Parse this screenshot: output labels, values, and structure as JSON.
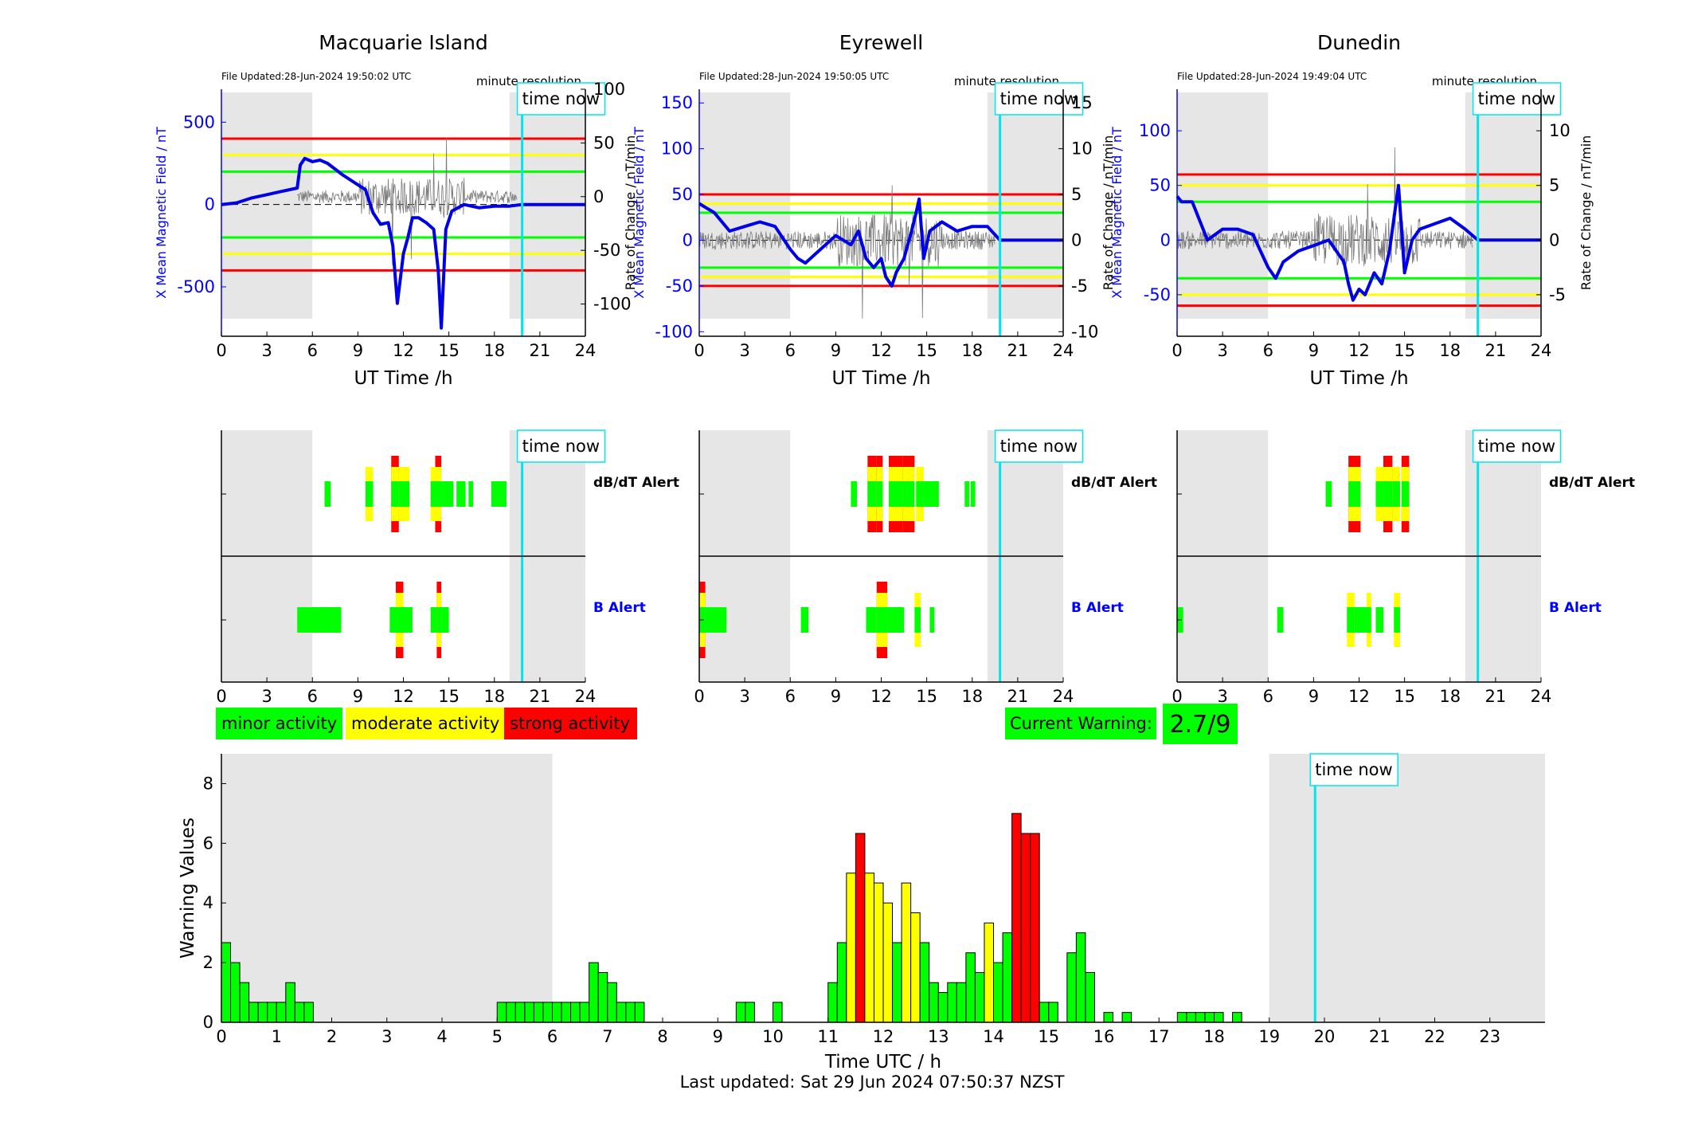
{
  "colors": {
    "shade": "#e6e6e6",
    "field_line": "#0000e6",
    "rate_line": "#7a7a7a",
    "red": "#ff0000",
    "yellow": "#ffff00",
    "green": "#00ff00",
    "time_now": "#00e5ee",
    "axis_blue": "#0000ff"
  },
  "common": {
    "time_now_label": "time now",
    "minute_resolution": "minute resolution",
    "x_label_top": "UT Time /h",
    "x_ticks_top": [
      "0",
      "3",
      "6",
      "9",
      "12",
      "15",
      "18",
      "21",
      "24"
    ],
    "y_left_label": "X Mean Magnetic Field / nT",
    "y_right_label": "Rate of Change / nT/min",
    "dbdt_alert": "dB/dT Alert",
    "b_alert": "B Alert"
  },
  "chart_data": [
    {
      "type": "line",
      "title": "Macquarie Island",
      "file_updated": "File Updated:28-Jun-2024 19:50:02 UTC",
      "xlim": [
        0,
        24
      ],
      "time_now": 19.83,
      "night_shade": [
        [
          0,
          6
        ],
        [
          19,
          24
        ]
      ],
      "ylim_left": [
        -800,
        700
      ],
      "yticks_left": [
        "500",
        "0",
        "-500"
      ],
      "ytick_values_left": [
        500,
        0,
        -500
      ],
      "ylim_right": [
        -130,
        100
      ],
      "yticks_right": [
        "100",
        "50",
        "0",
        "-50",
        "-100"
      ],
      "ytick_values_right": [
        100,
        50,
        0,
        -50,
        -100
      ],
      "thresholds": {
        "red": 400,
        "yellow": 300,
        "green": 200
      },
      "field_series": [
        [
          0,
          0
        ],
        [
          1,
          10
        ],
        [
          2,
          40
        ],
        [
          3,
          60
        ],
        [
          4,
          80
        ],
        [
          5,
          100
        ],
        [
          5.2,
          240
        ],
        [
          5.5,
          280
        ],
        [
          6,
          260
        ],
        [
          6.5,
          270
        ],
        [
          7,
          250
        ],
        [
          8,
          180
        ],
        [
          9,
          120
        ],
        [
          9.5,
          90
        ],
        [
          10,
          -50
        ],
        [
          10.5,
          -120
        ],
        [
          11,
          -110
        ],
        [
          11.3,
          -250
        ],
        [
          11.6,
          -600
        ],
        [
          12,
          -300
        ],
        [
          12.3,
          -200
        ],
        [
          12.6,
          -80
        ],
        [
          13,
          -80
        ],
        [
          13.5,
          -110
        ],
        [
          14,
          -150
        ],
        [
          14.3,
          -400
        ],
        [
          14.5,
          -750
        ],
        [
          14.8,
          -150
        ],
        [
          15.2,
          -40
        ],
        [
          16,
          0
        ],
        [
          17,
          -20
        ],
        [
          18,
          -10
        ],
        [
          19,
          -10
        ],
        [
          19.83,
          0
        ],
        [
          24,
          0
        ]
      ],
      "rate_noise_windows": [
        [
          5,
          19.5
        ]
      ],
      "dbdt_blocks": [
        [
          6.8,
          7.2,
          "g"
        ],
        [
          9.5,
          10,
          "y"
        ],
        [
          11.2,
          11.7,
          "r"
        ],
        [
          11.7,
          12.4,
          "y"
        ],
        [
          13.8,
          14.1,
          "y"
        ],
        [
          14.1,
          14.5,
          "r"
        ],
        [
          14.5,
          15.3,
          "g"
        ],
        [
          15.5,
          16.1,
          "g"
        ],
        [
          16.3,
          16.6,
          "g"
        ],
        [
          17.8,
          18.8,
          "g"
        ]
      ],
      "b_blocks": [
        [
          5,
          7.9,
          "g"
        ],
        [
          11.1,
          11.5,
          "g"
        ],
        [
          11.5,
          12,
          "r"
        ],
        [
          12,
          12.6,
          "g"
        ],
        [
          13.8,
          14.2,
          "g"
        ],
        [
          14.2,
          14.5,
          "r"
        ],
        [
          14.5,
          15,
          "g"
        ]
      ]
    },
    {
      "type": "line",
      "title": "Eyrewell",
      "file_updated": "File Updated:28-Jun-2024 19:50:05 UTC",
      "xlim": [
        0,
        24
      ],
      "time_now": 19.83,
      "night_shade": [
        [
          0,
          6
        ],
        [
          19,
          24
        ]
      ],
      "ylim_left": [
        -105,
        165
      ],
      "yticks_left": [
        "150",
        "100",
        "50",
        "0",
        "-50",
        "-100"
      ],
      "ytick_values_left": [
        150,
        100,
        50,
        0,
        -50,
        -100
      ],
      "ylim_right": [
        -10.5,
        16.5
      ],
      "yticks_right": [
        "15",
        "10",
        "5",
        "0",
        "-5",
        "-10"
      ],
      "ytick_values_right": [
        15,
        10,
        5,
        0,
        -5,
        -10
      ],
      "thresholds": {
        "red": 50,
        "yellow": 40,
        "green": 30
      },
      "field_series": [
        [
          0,
          40
        ],
        [
          0.5,
          35
        ],
        [
          1,
          30
        ],
        [
          2,
          10
        ],
        [
          3,
          15
        ],
        [
          4,
          20
        ],
        [
          5,
          15
        ],
        [
          6,
          -10
        ],
        [
          6.5,
          -20
        ],
        [
          7,
          -25
        ],
        [
          8,
          -10
        ],
        [
          9,
          5
        ],
        [
          10,
          -5
        ],
        [
          10.5,
          10
        ],
        [
          11,
          -20
        ],
        [
          11.5,
          -30
        ],
        [
          12,
          -20
        ],
        [
          12.3,
          -40
        ],
        [
          12.7,
          -50
        ],
        [
          13,
          -35
        ],
        [
          13.5,
          -20
        ],
        [
          14,
          10
        ],
        [
          14.3,
          30
        ],
        [
          14.5,
          45
        ],
        [
          14.8,
          -20
        ],
        [
          15.2,
          10
        ],
        [
          16,
          20
        ],
        [
          17,
          10
        ],
        [
          18,
          15
        ],
        [
          19,
          15
        ],
        [
          19.83,
          0
        ],
        [
          24,
          0
        ]
      ],
      "rate_noise_windows": [
        [
          0,
          19.5
        ]
      ],
      "dbdt_blocks": [
        [
          10,
          10.4,
          "g"
        ],
        [
          11.1,
          11.7,
          "r"
        ],
        [
          11.7,
          12.1,
          "r"
        ],
        [
          12.5,
          13.4,
          "r"
        ],
        [
          13.4,
          14.2,
          "r"
        ],
        [
          14.3,
          14.8,
          "y"
        ],
        [
          14.8,
          15.8,
          "g"
        ],
        [
          17.5,
          17.8,
          "g"
        ],
        [
          17.9,
          18.2,
          "g"
        ]
      ],
      "b_blocks": [
        [
          0,
          0.4,
          "r"
        ],
        [
          0.4,
          1.8,
          "g"
        ],
        [
          6.7,
          7.2,
          "g"
        ],
        [
          11,
          11.7,
          "g"
        ],
        [
          11.7,
          12.4,
          "r"
        ],
        [
          12.4,
          13.5,
          "g"
        ],
        [
          14.2,
          14.6,
          "y"
        ],
        [
          15.2,
          15.5,
          "g"
        ]
      ]
    },
    {
      "type": "line",
      "title": "Dunedin",
      "file_updated": "File Updated:28-Jun-2024 19:49:04 UTC",
      "xlim": [
        0,
        24
      ],
      "time_now": 19.83,
      "night_shade": [
        [
          0,
          6
        ],
        [
          19,
          24
        ]
      ],
      "ylim_left": [
        -88,
        138
      ],
      "yticks_left": [
        "100",
        "50",
        "0",
        "-50"
      ],
      "ytick_values_left": [
        100,
        50,
        0,
        -50
      ],
      "ylim_right": [
        -8.8,
        13.8
      ],
      "yticks_right": [
        "10",
        "5",
        "0",
        "-5"
      ],
      "ytick_values_right": [
        10,
        5,
        0,
        -5
      ],
      "thresholds": {
        "red": 60,
        "yellow": 50,
        "green": 35
      },
      "field_series": [
        [
          0,
          40
        ],
        [
          0.3,
          35
        ],
        [
          1,
          35
        ],
        [
          2,
          0
        ],
        [
          3,
          10
        ],
        [
          4,
          10
        ],
        [
          5,
          5
        ],
        [
          5.5,
          -10
        ],
        [
          6,
          -25
        ],
        [
          6.5,
          -35
        ],
        [
          7,
          -20
        ],
        [
          8,
          -10
        ],
        [
          9,
          -5
        ],
        [
          10,
          0
        ],
        [
          10.5,
          -10
        ],
        [
          11,
          -20
        ],
        [
          11.3,
          -40
        ],
        [
          11.6,
          -55
        ],
        [
          12,
          -45
        ],
        [
          12.4,
          -50
        ],
        [
          13,
          -30
        ],
        [
          13.5,
          -40
        ],
        [
          14,
          -10
        ],
        [
          14.3,
          20
        ],
        [
          14.6,
          50
        ],
        [
          15,
          -30
        ],
        [
          15.5,
          0
        ],
        [
          16,
          10
        ],
        [
          17,
          15
        ],
        [
          18,
          20
        ],
        [
          19,
          10
        ],
        [
          19.83,
          0
        ],
        [
          24,
          0
        ]
      ],
      "rate_noise_windows": [
        [
          0,
          19.5
        ]
      ],
      "dbdt_blocks": [
        [
          9.8,
          10.2,
          "g"
        ],
        [
          11.3,
          12.1,
          "r"
        ],
        [
          13.1,
          13.6,
          "y"
        ],
        [
          13.6,
          14.2,
          "r"
        ],
        [
          14.2,
          14.7,
          "y"
        ],
        [
          14.8,
          15.3,
          "r"
        ]
      ],
      "b_blocks": [
        [
          0,
          0.4,
          "g"
        ],
        [
          6.6,
          7,
          "g"
        ],
        [
          11.2,
          11.7,
          "y"
        ],
        [
          11.7,
          12.5,
          "g"
        ],
        [
          12.5,
          12.8,
          "y"
        ],
        [
          13.1,
          13.6,
          "g"
        ],
        [
          14.3,
          14.7,
          "y"
        ]
      ]
    },
    {
      "type": "bar",
      "xlabel": "Time UTC / h",
      "ylabel": "Warning Values",
      "xlim": [
        0,
        24
      ],
      "ylim": [
        0,
        9
      ],
      "x_ticks": [
        "0",
        "1",
        "2",
        "3",
        "4",
        "5",
        "6",
        "7",
        "8",
        "9",
        "10",
        "11",
        "12",
        "13",
        "14",
        "15",
        "16",
        "17",
        "18",
        "19",
        "20",
        "21",
        "22",
        "23"
      ],
      "y_ticks": [
        "0",
        "2",
        "4",
        "6",
        "8"
      ],
      "time_now": 19.83,
      "night_shade": [
        [
          0,
          6
        ],
        [
          19,
          24
        ]
      ],
      "bin_width": 0.1667,
      "bars": [
        [
          0.0833,
          2.67,
          "g"
        ],
        [
          0.25,
          2,
          "g"
        ],
        [
          0.4167,
          1.33,
          "g"
        ],
        [
          0.5833,
          0.67,
          "g"
        ],
        [
          0.75,
          0.67,
          "g"
        ],
        [
          0.9167,
          0.67,
          "g"
        ],
        [
          1.0833,
          0.67,
          "g"
        ],
        [
          1.25,
          1.33,
          "g"
        ],
        [
          1.4167,
          0.67,
          "g"
        ],
        [
          1.5833,
          0.67,
          "g"
        ],
        [
          5.0833,
          0.67,
          "g"
        ],
        [
          5.25,
          0.67,
          "g"
        ],
        [
          5.4167,
          0.67,
          "g"
        ],
        [
          5.5833,
          0.67,
          "g"
        ],
        [
          5.75,
          0.67,
          "g"
        ],
        [
          5.9167,
          0.67,
          "g"
        ],
        [
          6.0833,
          0.67,
          "g"
        ],
        [
          6.25,
          0.67,
          "g"
        ],
        [
          6.4167,
          0.67,
          "g"
        ],
        [
          6.5833,
          0.67,
          "g"
        ],
        [
          6.75,
          2,
          "g"
        ],
        [
          6.9167,
          1.67,
          "g"
        ],
        [
          7.0833,
          1.33,
          "g"
        ],
        [
          7.25,
          0.67,
          "g"
        ],
        [
          7.4167,
          0.67,
          "g"
        ],
        [
          7.5833,
          0.67,
          "g"
        ],
        [
          9.4167,
          0.67,
          "g"
        ],
        [
          9.5833,
          0.67,
          "g"
        ],
        [
          10.0833,
          0.67,
          "g"
        ],
        [
          11.0833,
          1.33,
          "g"
        ],
        [
          11.25,
          2.67,
          "g"
        ],
        [
          11.4167,
          5,
          "y"
        ],
        [
          11.5833,
          6.33,
          "r"
        ],
        [
          11.75,
          5,
          "y"
        ],
        [
          11.9167,
          4.67,
          "y"
        ],
        [
          12.0833,
          4,
          "y"
        ],
        [
          12.25,
          2.67,
          "g"
        ],
        [
          12.4167,
          4.67,
          "y"
        ],
        [
          12.5833,
          3.67,
          "y"
        ],
        [
          12.75,
          2.67,
          "g"
        ],
        [
          12.9167,
          1.33,
          "g"
        ],
        [
          13.0833,
          1,
          "g"
        ],
        [
          13.25,
          1.33,
          "g"
        ],
        [
          13.4167,
          1.33,
          "g"
        ],
        [
          13.5833,
          2.33,
          "g"
        ],
        [
          13.75,
          1.67,
          "g"
        ],
        [
          13.9167,
          3.33,
          "y"
        ],
        [
          14.0833,
          2,
          "g"
        ],
        [
          14.25,
          3,
          "g"
        ],
        [
          14.4167,
          7,
          "r"
        ],
        [
          14.5833,
          6.33,
          "r"
        ],
        [
          14.75,
          6.33,
          "r"
        ],
        [
          14.9167,
          0.67,
          "g"
        ],
        [
          15.0833,
          0.67,
          "g"
        ],
        [
          15.4167,
          2.33,
          "g"
        ],
        [
          15.5833,
          3,
          "g"
        ],
        [
          15.75,
          1.67,
          "g"
        ],
        [
          16.0833,
          0.33,
          "g"
        ],
        [
          16.4167,
          0.33,
          "g"
        ],
        [
          17.4167,
          0.33,
          "g"
        ],
        [
          17.5833,
          0.33,
          "g"
        ],
        [
          17.75,
          0.33,
          "g"
        ],
        [
          17.9167,
          0.33,
          "g"
        ],
        [
          18.0833,
          0.33,
          "g"
        ],
        [
          18.4167,
          0.33,
          "g"
        ]
      ]
    }
  ],
  "legend": {
    "minor": "minor activity",
    "moderate": "moderate activity",
    "strong": "strong activity"
  },
  "warning": {
    "label": "Current Warning:",
    "value": "2.7/9"
  },
  "footer": {
    "last_updated": "Last updated: Sat 29 Jun 2024 07:50:37 NZST"
  }
}
